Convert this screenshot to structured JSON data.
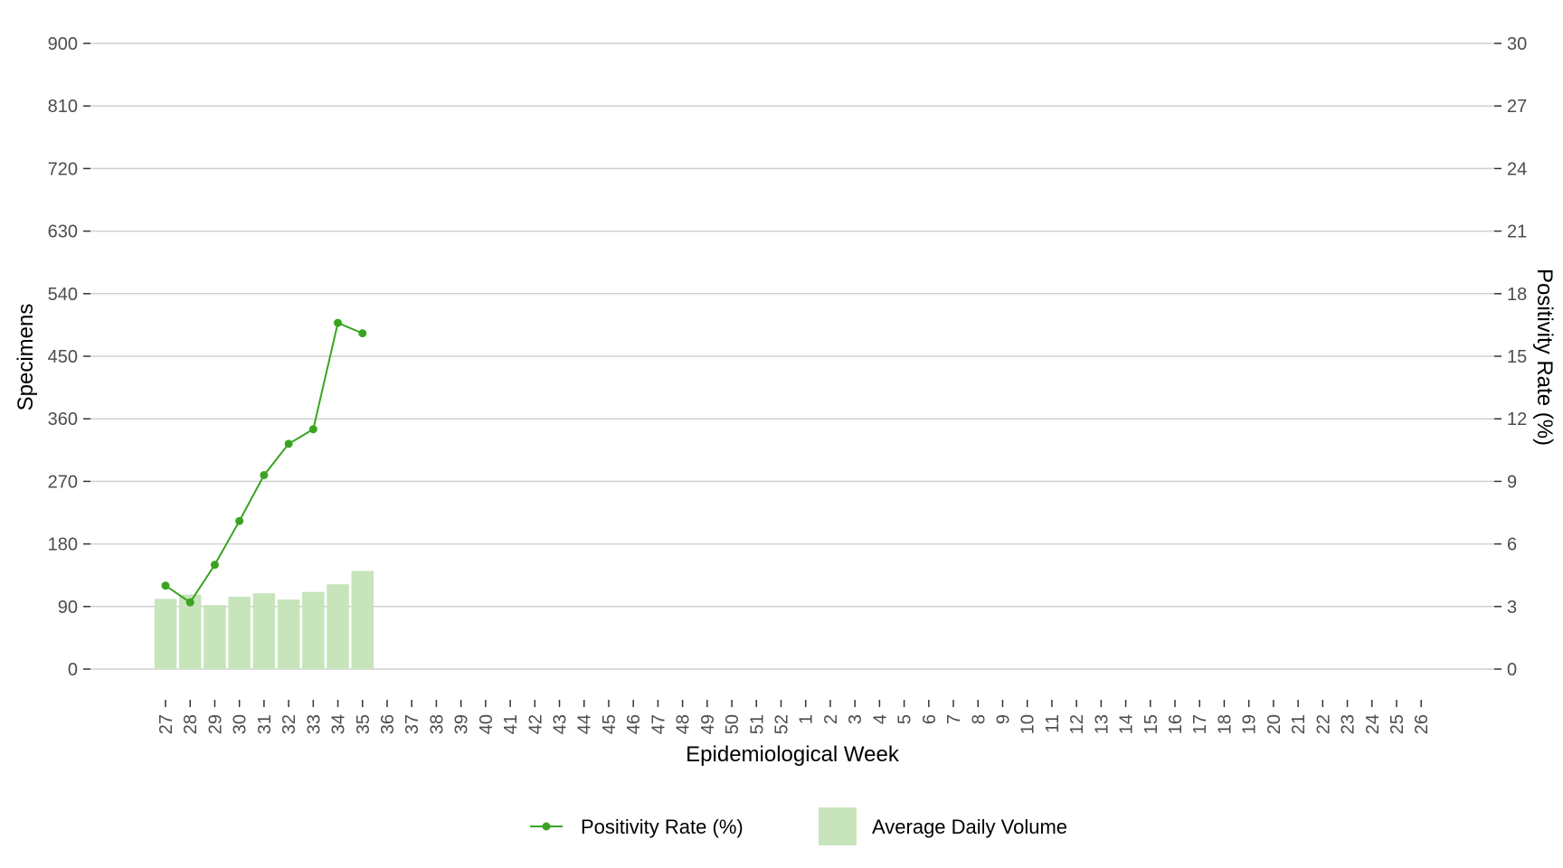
{
  "chart_data": {
    "type": "bar+line",
    "xlabel": "Epidemiological Week",
    "ylabel_left": "Specimens",
    "ylabel_right": "Positivity Rate (%)",
    "ylim_left": [
      0,
      900
    ],
    "ylim_right": [
      0,
      30
    ],
    "yticks_left": [
      0,
      90,
      180,
      270,
      360,
      450,
      540,
      630,
      720,
      810,
      900
    ],
    "yticks_right": [
      0,
      3,
      6,
      9,
      12,
      15,
      18,
      21,
      24,
      27,
      30
    ],
    "grid": "horizontal",
    "legend_position": "bottom",
    "categories": [
      "27",
      "28",
      "29",
      "30",
      "31",
      "32",
      "33",
      "34",
      "35",
      "36",
      "37",
      "38",
      "39",
      "40",
      "41",
      "42",
      "43",
      "44",
      "45",
      "46",
      "47",
      "48",
      "49",
      "50",
      "51",
      "52",
      "1",
      "2",
      "3",
      "4",
      "5",
      "6",
      "7",
      "8",
      "9",
      "10",
      "11",
      "12",
      "13",
      "14",
      "15",
      "16",
      "17",
      "18",
      "19",
      "20",
      "21",
      "22",
      "23",
      "24",
      "25",
      "26"
    ],
    "series": [
      {
        "name": "Average Daily Volume",
        "kind": "bar",
        "axis": "left",
        "color": "#c7e4bb",
        "values": [
          101,
          107,
          92,
          104,
          109,
          100,
          111,
          122,
          141,
          null,
          null,
          null,
          null,
          null,
          null,
          null,
          null,
          null,
          null,
          null,
          null,
          null,
          null,
          null,
          null,
          null,
          null,
          null,
          null,
          null,
          null,
          null,
          null,
          null,
          null,
          null,
          null,
          null,
          null,
          null,
          null,
          null,
          null,
          null,
          null,
          null,
          null,
          null,
          null,
          null,
          null,
          null
        ]
      },
      {
        "name": "Positivity Rate (%)",
        "kind": "line",
        "axis": "right",
        "color": "#3aa421",
        "values": [
          4.0,
          3.2,
          5.0,
          7.1,
          9.3,
          10.8,
          11.5,
          16.6,
          16.1,
          null,
          null,
          null,
          null,
          null,
          null,
          null,
          null,
          null,
          null,
          null,
          null,
          null,
          null,
          null,
          null,
          null,
          null,
          null,
          null,
          null,
          null,
          null,
          null,
          null,
          null,
          null,
          null,
          null,
          null,
          null,
          null,
          null,
          null,
          null,
          null,
          null,
          null,
          null,
          null,
          null,
          null,
          null
        ]
      }
    ]
  }
}
